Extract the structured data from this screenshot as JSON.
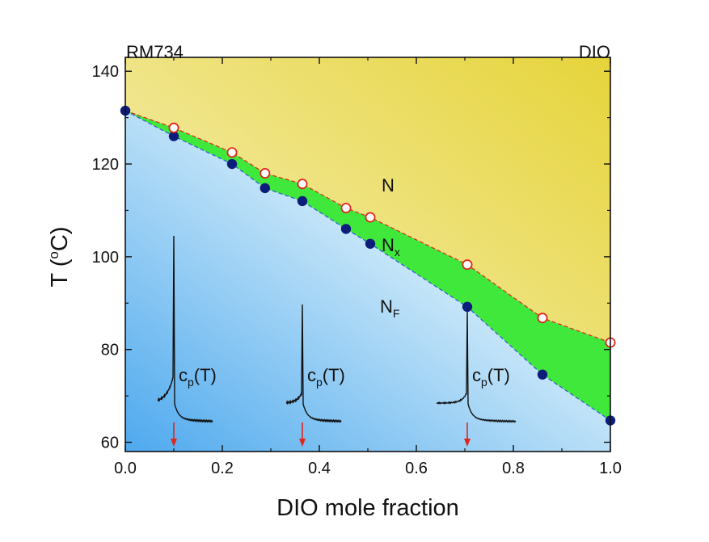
{
  "chart_data": {
    "type": "scatter",
    "title": "",
    "xlabel": "DIO mole fraction",
    "ylabel": "T (",
    "ylabel_super": "o",
    "ylabel_tail": "C)",
    "xlim": [
      0.0,
      1.0
    ],
    "ylim": [
      58,
      143
    ],
    "x_ticks": [
      0.0,
      0.2,
      0.4,
      0.6,
      0.8,
      1.0
    ],
    "x_tick_labels": [
      "0.0",
      "0.2",
      "0.4",
      "0.6",
      "0.8",
      "1.0"
    ],
    "y_ticks": [
      60,
      80,
      100,
      120,
      140
    ],
    "y_tick_labels": [
      "60",
      "80",
      "100",
      "120",
      "140"
    ],
    "corner_left": "RM734",
    "corner_right": "DIO",
    "phase_labels": {
      "N": {
        "main": "N",
        "sub": ""
      },
      "Nx": {
        "main": "N",
        "sub": "x"
      },
      "NF": {
        "main": "N",
        "sub": "F"
      }
    },
    "series": [
      {
        "marker": "open-circle",
        "x": [
          0.1,
          0.22,
          0.288,
          0.365,
          0.455,
          0.505,
          0.705,
          0.86,
          1.0
        ],
        "y": [
          127.8,
          122.5,
          118.0,
          115.7,
          110.5,
          108.5,
          98.3,
          86.8,
          81.5
        ]
      },
      {
        "marker": "filled-circle",
        "x": [
          0.0,
          0.1,
          0.22,
          0.288,
          0.365,
          0.455,
          0.505,
          0.705,
          0.86,
          1.0
        ],
        "y": [
          131.5,
          126.0,
          120.0,
          114.8,
          112.0,
          106.0,
          102.8,
          89.2,
          74.6,
          64.7
        ]
      }
    ],
    "insets": [
      {
        "label_main": "c",
        "label_sub": "p",
        "label_tail": "(T)",
        "arrow_x": 0.1
      },
      {
        "label_main": "c",
        "label_sub": "p",
        "label_tail": "(T)",
        "arrow_x": 0.365
      },
      {
        "label_main": "c",
        "label_sub": "p",
        "label_tail": "(T)",
        "arrow_x": 0.705
      }
    ],
    "colors": {
      "N_region_light": "#f8f3cf",
      "N_region_dark": "#e6d43a",
      "Nx_region": "#3fe83a",
      "NF_region_light": "#cde9f9",
      "NF_region_dark": "#4ea9ee",
      "open_marker_stroke": "#e0271b",
      "filled_marker": "#0c1d7a",
      "upper_boundary": "#e0271b",
      "lower_boundary": "#2a5bd0",
      "arrow": "#e0271b"
    }
  }
}
